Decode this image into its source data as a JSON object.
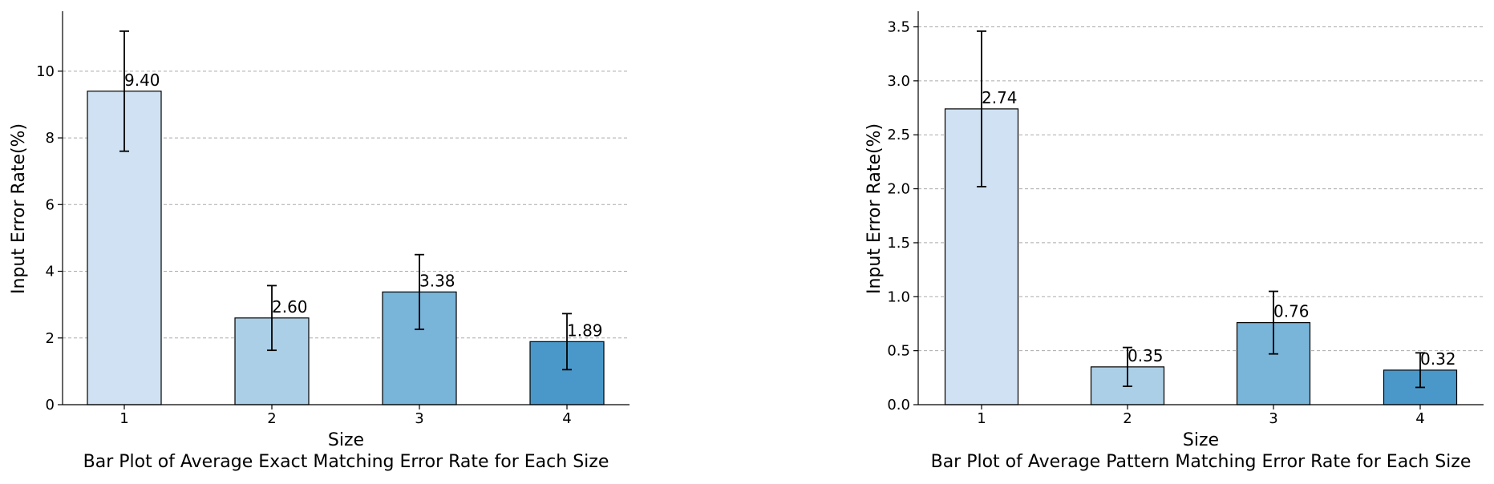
{
  "chart_data": [
    {
      "type": "bar",
      "title": "Bar Plot of Average Exact Matching Error Rate for Each Size",
      "xlabel": "Size",
      "ylabel": "Input Error Rate(%)",
      "categories": [
        "1",
        "2",
        "3",
        "4"
      ],
      "values": [
        9.4,
        2.6,
        3.38,
        1.89
      ],
      "value_labels": [
        "9.40",
        "2.60",
        "3.38",
        "1.89"
      ],
      "errors": [
        1.8,
        0.97,
        1.12,
        0.84
      ],
      "colors": [
        "#cfe1f2",
        "#abcfe6",
        "#79b4d9",
        "#4a98c9"
      ],
      "ylim": [
        0,
        11.75
      ],
      "yticks": [
        0,
        2,
        4,
        6,
        8,
        10
      ],
      "ytick_labels": [
        "0",
        "2",
        "4",
        "6",
        "8",
        "10"
      ],
      "grid": "y-dashed",
      "legend": "none"
    },
    {
      "type": "bar",
      "title": "Bar Plot of Average Pattern Matching Error Rate for Each Size",
      "xlabel": "Size",
      "ylabel": "Input Error Rate(%)",
      "categories": [
        "1",
        "2",
        "3",
        "4"
      ],
      "values": [
        2.74,
        0.35,
        0.76,
        0.32
      ],
      "value_labels": [
        "2.74",
        "0.35",
        "0.76",
        "0.32"
      ],
      "errors": [
        0.72,
        0.18,
        0.29,
        0.16
      ],
      "colors": [
        "#cfe1f2",
        "#abcfe6",
        "#79b4d9",
        "#4a98c9"
      ],
      "ylim": [
        0,
        3.63
      ],
      "yticks": [
        0,
        0.5,
        1.0,
        1.5,
        2.0,
        2.5,
        3.0,
        3.5
      ],
      "ytick_labels": [
        "0.0",
        "0.5",
        "1.0",
        "1.5",
        "2.0",
        "2.5",
        "3.0",
        "3.5"
      ],
      "grid": "y-dashed",
      "legend": "none"
    }
  ]
}
